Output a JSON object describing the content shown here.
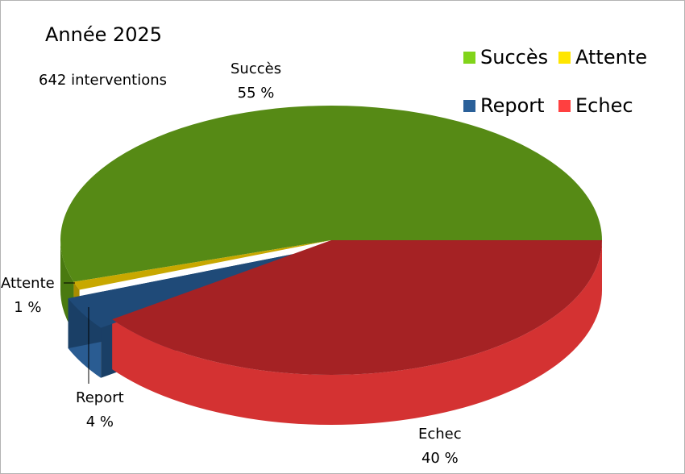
{
  "chart_data": {
    "type": "pie",
    "title": "Année 2025",
    "subtitle": "642 interventions",
    "slices": [
      {
        "name": "Succès",
        "value": 55,
        "label": "55 %",
        "color": "#568a15",
        "side": "#4a7a10",
        "legend": "#81d41a"
      },
      {
        "name": "Attente",
        "value": 1,
        "label": "1 %",
        "color": "#c8a800",
        "side": "#a88c00",
        "legend": "#ffe600"
      },
      {
        "name": "Report",
        "value": 4,
        "label": "4 %",
        "color": "#1f4a78",
        "side": "#2a5c92",
        "legend": "#2a6099"
      },
      {
        "name": "Echec",
        "value": 40,
        "label": "40 %",
        "color": "#a52224",
        "side": "#d43232",
        "legend": "#ff4040"
      }
    ],
    "legend_placement": "top-right"
  }
}
